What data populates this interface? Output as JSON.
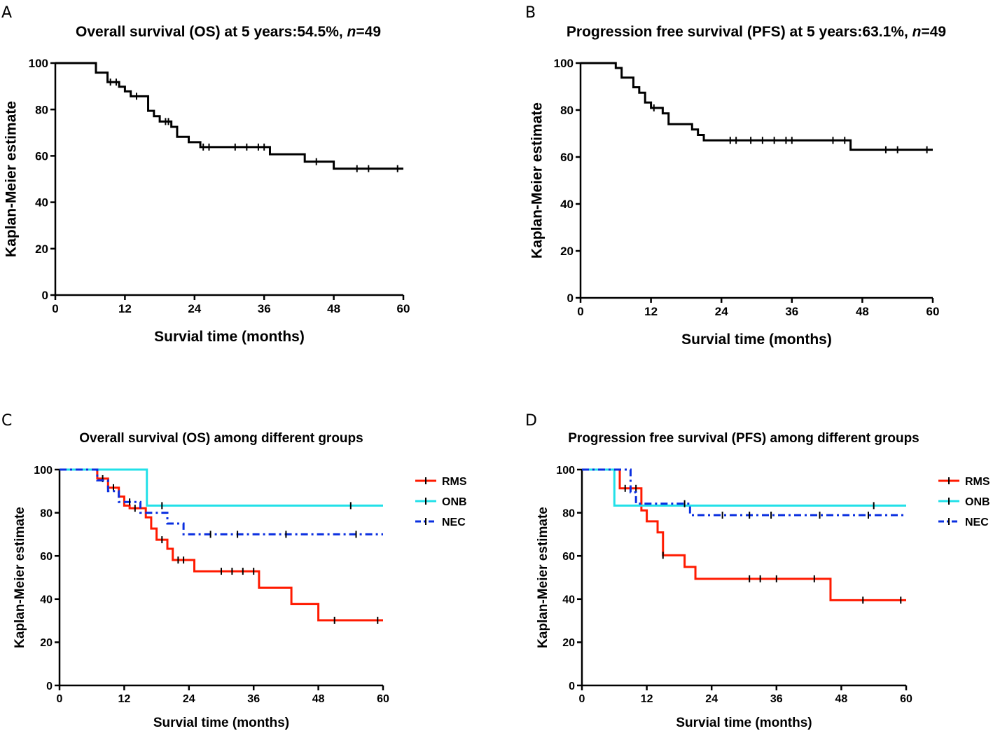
{
  "chart_data": [
    {
      "panel": "A",
      "type": "line",
      "title_parts": [
        "Overall survival (OS) at 5 years:54.5%, ",
        "n",
        "=49"
      ],
      "xlabel": "Survial time (months)",
      "ylabel": "Kaplan-Meier estimate",
      "xlim": [
        0,
        60
      ],
      "ylim": [
        0,
        100
      ],
      "xticks": [
        0,
        12,
        24,
        36,
        48,
        60
      ],
      "yticks": [
        0,
        20,
        40,
        60,
        80,
        100
      ],
      "series": [
        {
          "name": "OS",
          "color": "#000000",
          "dash": "",
          "steps": [
            [
              0,
              100
            ],
            [
              7,
              95.9
            ],
            [
              9,
              91.8
            ],
            [
              11,
              89.8
            ],
            [
              12,
              87.8
            ],
            [
              13,
              85.7
            ],
            [
              16,
              79.4
            ],
            [
              17,
              77.1
            ],
            [
              18,
              74.8
            ],
            [
              20,
              72.5
            ],
            [
              21,
              68.2
            ],
            [
              23,
              65.9
            ],
            [
              25,
              63.8
            ],
            [
              37,
              60.7
            ],
            [
              43,
              57.5
            ],
            [
              48,
              54.5
            ],
            [
              60,
              54.5
            ]
          ],
          "censored": [
            [
              9.5,
              91.8
            ],
            [
              10.5,
              91.8
            ],
            [
              14,
              85.7
            ],
            [
              19,
              74.8
            ],
            [
              19.5,
              74.8
            ],
            [
              25.5,
              63.8
            ],
            [
              26.5,
              63.8
            ],
            [
              31,
              63.8
            ],
            [
              33,
              63.8
            ],
            [
              35,
              63.8
            ],
            [
              36,
              63.8
            ],
            [
              45,
              57.5
            ],
            [
              52,
              54.5
            ],
            [
              54,
              54.5
            ],
            [
              59,
              54.5
            ]
          ]
        }
      ]
    },
    {
      "panel": "B",
      "type": "line",
      "title_parts": [
        "Progression free survival (PFS) at 5 years:63.1%, ",
        "n",
        "=49"
      ],
      "xlabel": "Survial time (months)",
      "ylabel": "Kaplan-Meier estimate",
      "xlim": [
        0,
        60
      ],
      "ylim": [
        0,
        100
      ],
      "xticks": [
        0,
        12,
        24,
        36,
        48,
        60
      ],
      "yticks": [
        0,
        20,
        40,
        60,
        80,
        100
      ],
      "series": [
        {
          "name": "PFS",
          "color": "#000000",
          "dash": "",
          "steps": [
            [
              0,
              100
            ],
            [
              6,
              97.9
            ],
            [
              7,
              93.8
            ],
            [
              9,
              89.7
            ],
            [
              10,
              87.4
            ],
            [
              11,
              83.2
            ],
            [
              12,
              80.9
            ],
            [
              14,
              78.6
            ],
            [
              15,
              74
            ],
            [
              19,
              71.7
            ],
            [
              20,
              69.4
            ],
            [
              21,
              67.1
            ],
            [
              46,
              63.1
            ],
            [
              60,
              63.1
            ]
          ],
          "censored": [
            [
              12.5,
              80.9
            ],
            [
              25.5,
              67.1
            ],
            [
              26.5,
              67.1
            ],
            [
              29,
              67.1
            ],
            [
              31,
              67.1
            ],
            [
              33,
              67.1
            ],
            [
              35,
              67.1
            ],
            [
              36,
              67.1
            ],
            [
              43,
              67.1
            ],
            [
              45,
              67.1
            ],
            [
              52,
              63.1
            ],
            [
              54,
              63.1
            ],
            [
              59,
              63.1
            ]
          ]
        }
      ]
    },
    {
      "panel": "C",
      "type": "line",
      "title_parts": [
        "Overall survival (OS) among different groups",
        "",
        ""
      ],
      "xlabel": "Survial time (months)",
      "ylabel": "Kaplan-Meier estimate",
      "xlim": [
        0,
        60
      ],
      "ylim": [
        0,
        100
      ],
      "xticks": [
        0,
        12,
        24,
        36,
        48,
        60
      ],
      "yticks": [
        0,
        20,
        40,
        60,
        80,
        100
      ],
      "legend": [
        "RMS",
        "ONB",
        "NEC"
      ],
      "series": [
        {
          "name": "RMS",
          "color": "#ff1a00",
          "dash": "",
          "steps": [
            [
              0,
              100
            ],
            [
              7,
              95.8
            ],
            [
              9,
              91.6
            ],
            [
              11,
              87.5
            ],
            [
              12,
              83.3
            ],
            [
              13,
              82.1
            ],
            [
              16,
              77.9
            ],
            [
              17,
              72.7
            ],
            [
              18,
              67.5
            ],
            [
              20,
              63.3
            ],
            [
              21,
              58.1
            ],
            [
              25,
              52.9
            ],
            [
              37,
              45.3
            ],
            [
              43,
              37.8
            ],
            [
              48,
              30.2
            ],
            [
              60,
              30.2
            ]
          ],
          "censored": [
            [
              8,
              95.8
            ],
            [
              10,
              91.6
            ],
            [
              14,
              82.1
            ],
            [
              19,
              67.5
            ],
            [
              22,
              58.1
            ],
            [
              23,
              58.1
            ],
            [
              30,
              52.9
            ],
            [
              32,
              52.9
            ],
            [
              34,
              52.9
            ],
            [
              36,
              52.9
            ],
            [
              51,
              30.2
            ],
            [
              59,
              30.2
            ]
          ]
        },
        {
          "name": "ONB",
          "color": "#22e0e8",
          "dash": "",
          "steps": [
            [
              0,
              100
            ],
            [
              16.2,
              83.3
            ],
            [
              60,
              83.3
            ]
          ],
          "censored": [
            [
              19,
              83.3
            ],
            [
              54,
              83.3
            ]
          ]
        },
        {
          "name": "NEC",
          "color": "#0a2fe0",
          "dash": "10,5,3,5",
          "steps": [
            [
              0,
              100
            ],
            [
              7,
              95
            ],
            [
              9,
              90
            ],
            [
              11,
              85
            ],
            [
              15,
              80
            ],
            [
              20,
              75
            ],
            [
              23,
              70
            ],
            [
              60,
              70
            ]
          ],
          "censored": [
            [
              13,
              85
            ],
            [
              28,
              70
            ],
            [
              33,
              70
            ],
            [
              42,
              70
            ],
            [
              55,
              70
            ]
          ]
        }
      ]
    },
    {
      "panel": "D",
      "type": "line",
      "title_parts": [
        "Progression free survival (PFS) among different groups",
        "",
        ""
      ],
      "xlabel": "Survial time (months)",
      "ylabel": "Kaplan-Meier estimate",
      "xlim": [
        0,
        60
      ],
      "ylim": [
        0,
        100
      ],
      "xticks": [
        0,
        12,
        24,
        36,
        48,
        60
      ],
      "yticks": [
        0,
        20,
        40,
        60,
        80,
        100
      ],
      "legend": [
        "RMS",
        "ONB",
        "NEC"
      ],
      "series": [
        {
          "name": "RMS",
          "color": "#ff1a00",
          "dash": "",
          "steps": [
            [
              0,
              100
            ],
            [
              7,
              91.3
            ],
            [
              11,
              81.1
            ],
            [
              12,
              76
            ],
            [
              14,
              70.9
            ],
            [
              15,
              60.3
            ],
            [
              19,
              54.9
            ],
            [
              21,
              49.4
            ],
            [
              46,
              39.5
            ],
            [
              60,
              39.5
            ]
          ],
          "censored": [
            [
              8,
              91.3
            ],
            [
              10,
              91.3
            ],
            [
              15,
              60.3
            ],
            [
              31,
              49.4
            ],
            [
              33,
              49.4
            ],
            [
              36,
              49.4
            ],
            [
              43,
              49.4
            ],
            [
              52,
              39.5
            ],
            [
              59,
              39.5
            ]
          ]
        },
        {
          "name": "ONB",
          "color": "#22e0e8",
          "dash": "",
          "steps": [
            [
              0,
              100
            ],
            [
              6,
              83.3
            ],
            [
              60,
              83.3
            ]
          ],
          "censored": [
            [
              54,
              83.3
            ]
          ]
        },
        {
          "name": "NEC",
          "color": "#0a2fe0",
          "dash": "10,5,3,5",
          "steps": [
            [
              0,
              100
            ],
            [
              9,
              89.5
            ],
            [
              10,
              84.2
            ],
            [
              20,
              78.9
            ],
            [
              60,
              78.9
            ]
          ],
          "censored": [
            [
              19,
              84.2
            ],
            [
              26,
              78.9
            ],
            [
              31,
              78.9
            ],
            [
              35,
              78.9
            ],
            [
              44,
              78.9
            ],
            [
              53,
              78.9
            ]
          ]
        }
      ]
    }
  ]
}
